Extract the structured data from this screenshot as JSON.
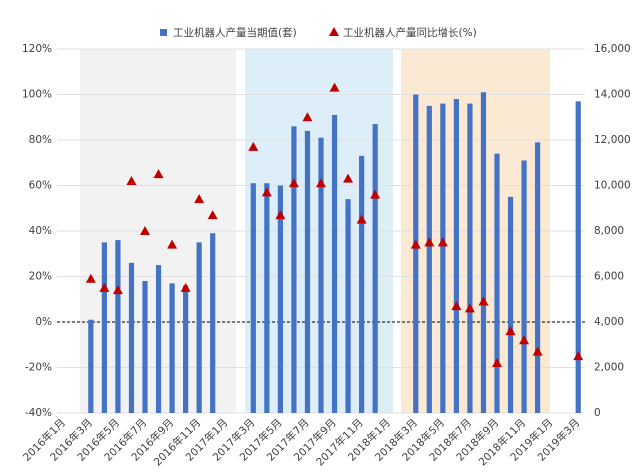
{
  "chart_data": {
    "type": "bar+scatter",
    "categories": [
      "2016年1月",
      null,
      "2016年3月",
      null,
      "2016年5月",
      null,
      "2016年7月",
      null,
      "2016年9月",
      null,
      "2016年11月",
      null,
      "2017年1月",
      null,
      "2017年3月",
      null,
      "2017年5月",
      null,
      "2017年7月",
      null,
      "2017年9月",
      null,
      "2017年11月",
      null,
      "2018年1月",
      null,
      "2018年3月",
      null,
      "2018年5月",
      null,
      "2018年7月",
      null,
      "2018年9月",
      null,
      "2018年11月",
      null,
      "2019年1月",
      null,
      "2019年3月"
    ],
    "series": [
      {
        "name": "工业机器人产量当期值(套)",
        "type": "bar",
        "axis": "y2",
        "color": "#4472c4",
        "values": [
          null,
          null,
          4100,
          7500,
          7600,
          6600,
          5800,
          6500,
          5700,
          5600,
          7500,
          7900,
          null,
          null,
          10100,
          10100,
          10000,
          12600,
          12400,
          12100,
          13100,
          9400,
          11300,
          12700,
          null,
          null,
          14000,
          13500,
          13600,
          13800,
          13600,
          14100,
          11400,
          9500,
          11100,
          11900,
          null,
          null,
          13700
        ]
      },
      {
        "name": "工业机器人产量同比增长(%)",
        "type": "scatter",
        "axis": "y",
        "color": "#c00000",
        "values": [
          null,
          null,
          19,
          15,
          14,
          62,
          40,
          65,
          34,
          15,
          54,
          47,
          null,
          null,
          77,
          57,
          47,
          61,
          90,
          61,
          103,
          63,
          45,
          56,
          null,
          null,
          34,
          35,
          35,
          7,
          6,
          9,
          -18,
          -4,
          -8,
          -13,
          null,
          null,
          -15
        ]
      }
    ],
    "ylim": [
      -40,
      120
    ],
    "yticks": [
      {
        "value": -40,
        "label": "-40%"
      },
      {
        "value": -20,
        "label": "-20%"
      },
      {
        "value": 0,
        "label": "0%"
      },
      {
        "value": 20,
        "label": "20%"
      },
      {
        "value": 40,
        "label": "40%"
      },
      {
        "value": 60,
        "label": "60%"
      },
      {
        "value": 80,
        "label": "80%"
      },
      {
        "value": 100,
        "label": "100%"
      },
      {
        "value": 120,
        "label": "120%"
      }
    ],
    "y2lim": [
      0,
      16000
    ],
    "y2ticks": [
      0,
      {
        "value": 2000,
        "label": "2,000"
      },
      {
        "value": 4000,
        "label": "4,000"
      },
      {
        "value": 6000,
        "label": "6,000"
      },
      {
        "value": 8000,
        "label": "8,000"
      },
      {
        "value": 10000,
        "label": "10,000"
      },
      {
        "value": 12000,
        "label": "12,000"
      },
      {
        "value": 14000,
        "label": "14,000"
      },
      {
        "value": 16000,
        "label": "16,000"
      }
    ],
    "grid": true,
    "legend": "top"
  }
}
